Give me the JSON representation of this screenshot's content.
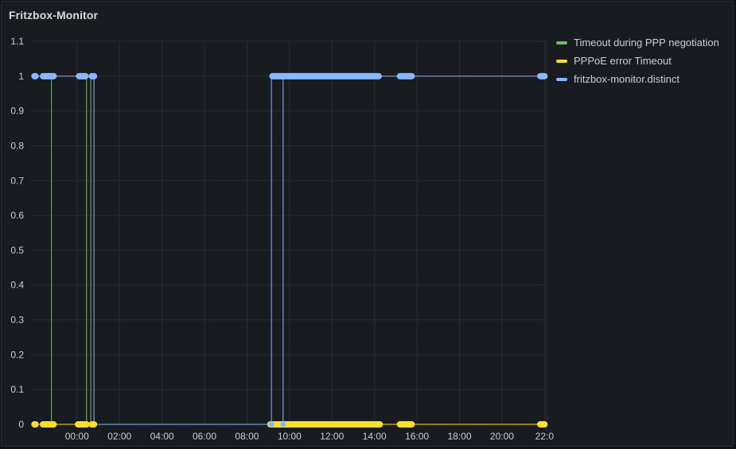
{
  "panel": {
    "title": "Fritzbox-Monitor"
  },
  "legend": {
    "items": [
      {
        "label": "Timeout during PPP negotiation",
        "color": "#73bf69"
      },
      {
        "label": "PPPoE error Timeout",
        "color": "#fade2a"
      },
      {
        "label": "fritzbox-monitor.distinct",
        "color": "#8ab8ff"
      }
    ]
  },
  "chart_data": {
    "type": "line",
    "title": "Fritzbox-Monitor",
    "xlabel": "",
    "ylabel": "",
    "x_unit": "hours relative to 00:00",
    "xlim": [
      -2.2,
      22.1
    ],
    "ylim": [
      0,
      1.1
    ],
    "x_ticks": [
      {
        "x": 0,
        "label": "00:00"
      },
      {
        "x": 2,
        "label": "02:00"
      },
      {
        "x": 4,
        "label": "04:00"
      },
      {
        "x": 6,
        "label": "06:00"
      },
      {
        "x": 8,
        "label": "08:00"
      },
      {
        "x": 10,
        "label": "10:00"
      },
      {
        "x": 12,
        "label": "12:00"
      },
      {
        "x": 14,
        "label": "14:00"
      },
      {
        "x": 16,
        "label": "16:00"
      },
      {
        "x": 18,
        "label": "18:00"
      },
      {
        "x": 20,
        "label": "20:00"
      },
      {
        "x": 22,
        "label": "22:0"
      }
    ],
    "y_ticks": [
      0,
      0.1,
      0.2,
      0.3,
      0.4,
      0.5,
      0.6,
      0.7,
      0.8,
      0.9,
      1,
      1.1
    ],
    "grid": true,
    "legend_position": "right",
    "series": [
      {
        "name": "Timeout during PPP negotiation",
        "color": "#73bf69",
        "spikes_at": [
          -1.2,
          0.45,
          0.65
        ]
      },
      {
        "name": "PPPoE error Timeout",
        "color": "#fade2a",
        "baseline_segments": [
          [
            -2.0,
            0.85
          ],
          [
            9.1,
            22.0
          ]
        ],
        "point_clusters": [
          [
            -2.0,
            -1.95
          ],
          [
            -1.6,
            -1.1
          ],
          [
            0.05,
            0.45
          ],
          [
            0.7,
            0.8
          ],
          [
            9.1,
            9.25
          ],
          [
            9.35,
            14.25
          ],
          [
            15.2,
            15.75
          ],
          [
            21.8,
            22.0
          ]
        ]
      },
      {
        "name": "fritzbox-monitor.distinct",
        "color": "#8ab8ff",
        "value_one_segments": [
          [
            -2.0,
            0.8
          ],
          [
            9.15,
            22.0
          ]
        ],
        "value_zero_segments": [
          [
            0.8,
            9.15
          ]
        ],
        "drops_at": [
          0.8,
          9.15,
          9.7
        ],
        "point_clusters": [
          [
            -2.0,
            -1.95
          ],
          [
            -1.6,
            -1.1
          ],
          [
            0.1,
            0.4
          ],
          [
            0.7,
            0.8
          ],
          [
            9.2,
            14.2
          ],
          [
            15.2,
            15.75
          ],
          [
            21.8,
            22.0
          ]
        ]
      }
    ]
  }
}
